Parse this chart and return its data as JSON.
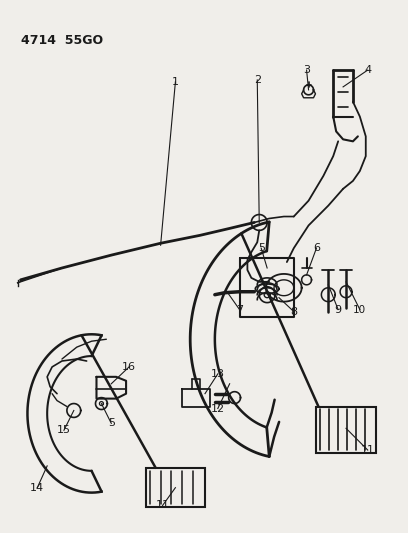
{
  "title": "4714  55GO",
  "bg_color": "#f0eeea",
  "line_color": "#1a1a1a",
  "fig_width": 4.08,
  "fig_height": 5.33,
  "dpi": 100
}
